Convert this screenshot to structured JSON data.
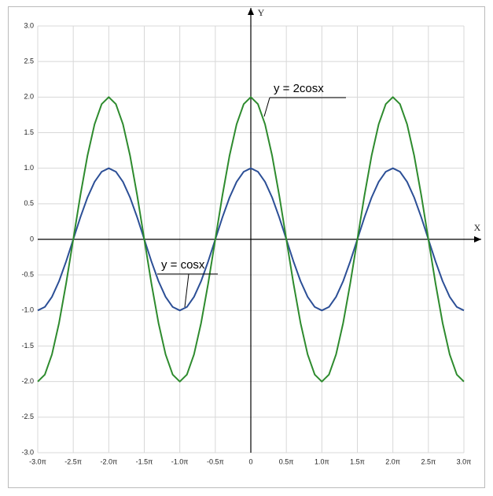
{
  "chart_data": {
    "type": "line",
    "x_label": "X",
    "y_label": "Y",
    "x": [
      -3,
      -2.9,
      -2.8,
      -2.7,
      -2.6,
      -2.5,
      -2.4,
      -2.3,
      -2.2,
      -2.1,
      -2,
      -1.9,
      -1.8,
      -1.7,
      -1.6,
      -1.5,
      -1.4,
      -1.3,
      -1.2,
      -1.1,
      -1,
      -0.9,
      -0.8,
      -0.7,
      -0.6,
      -0.5,
      -0.4,
      -0.3,
      -0.2,
      -0.1,
      0,
      0.1,
      0.2,
      0.3,
      0.4,
      0.5,
      0.6,
      0.7,
      0.8,
      0.9,
      1,
      1.1,
      1.2,
      1.3,
      1.4,
      1.5,
      1.6,
      1.7,
      1.8,
      1.9,
      2,
      2.1,
      2.2,
      2.3,
      2.4,
      2.5,
      2.6,
      2.7,
      2.8,
      2.9,
      3
    ],
    "series": [
      {
        "name": "y = cosx",
        "color": "#2c4f96",
        "values": [
          -1,
          -0.951,
          -0.809,
          -0.588,
          -0.309,
          0,
          0.309,
          0.588,
          0.809,
          0.951,
          1,
          0.951,
          0.809,
          0.588,
          0.309,
          0,
          -0.309,
          -0.588,
          -0.809,
          -0.951,
          -1,
          -0.951,
          -0.809,
          -0.588,
          -0.309,
          0,
          0.309,
          0.588,
          0.809,
          0.951,
          1,
          0.951,
          0.809,
          0.588,
          0.309,
          0,
          -0.309,
          -0.588,
          -0.809,
          -0.951,
          -1,
          -0.951,
          -0.809,
          -0.588,
          -0.309,
          0,
          0.309,
          0.588,
          0.809,
          0.951,
          1,
          0.951,
          0.809,
          0.588,
          0.309,
          0,
          -0.309,
          -0.588,
          -0.809,
          -0.951,
          -1
        ]
      },
      {
        "name": "y = 2cosx",
        "color": "#2e8b2e",
        "values": [
          -2,
          -1.902,
          -1.618,
          -1.176,
          -0.618,
          0,
          0.618,
          1.176,
          1.618,
          1.902,
          2,
          1.902,
          1.618,
          1.176,
          0.618,
          0,
          -0.618,
          -1.176,
          -1.618,
          -1.902,
          -2,
          -1.902,
          -1.618,
          -1.176,
          -0.618,
          0,
          0.618,
          1.176,
          1.618,
          1.902,
          2,
          1.902,
          1.618,
          1.176,
          0.618,
          0,
          -0.618,
          -1.176,
          -1.618,
          -1.902,
          -2,
          -1.902,
          -1.618,
          -1.176,
          -0.618,
          0,
          0.618,
          1.176,
          1.618,
          1.902,
          2,
          1.902,
          1.618,
          1.176,
          0.618,
          0,
          -0.618,
          -1.176,
          -1.618,
          -1.902,
          -2
        ]
      }
    ],
    "xlim": [
      -3,
      3
    ],
    "ylim": [
      -3,
      3
    ],
    "xticks": [
      {
        "value": -3,
        "label": "-3.0π"
      },
      {
        "value": -2.5,
        "label": "-2.5π"
      },
      {
        "value": -2,
        "label": "-2.0π"
      },
      {
        "value": -1.5,
        "label": "-1.5π"
      },
      {
        "value": -1,
        "label": "-1.0π"
      },
      {
        "value": -0.5,
        "label": "-0.5π"
      },
      0,
      {
        "value": 0.5,
        "label": "0.5π"
      },
      {
        "value": 1,
        "label": "1.0π"
      },
      {
        "value": 1.5,
        "label": "1.5π"
      },
      {
        "value": 2,
        "label": "2.0π"
      },
      {
        "value": 2.5,
        "label": "2.5π"
      },
      {
        "value": 3,
        "label": "3.0π"
      }
    ],
    "yticks": [
      {
        "value": -3,
        "label": "-3.0"
      },
      -2.5,
      {
        "value": -2,
        "label": "-2.0"
      },
      -1.5,
      {
        "value": -1,
        "label": "-1.0"
      },
      -0.5,
      0,
      0.5,
      {
        "value": 1,
        "label": "1.0"
      },
      1.5,
      {
        "value": 2,
        "label": "2.0"
      },
      2.5,
      {
        "value": 3,
        "label": "3.0"
      }
    ],
    "grid": true
  }
}
